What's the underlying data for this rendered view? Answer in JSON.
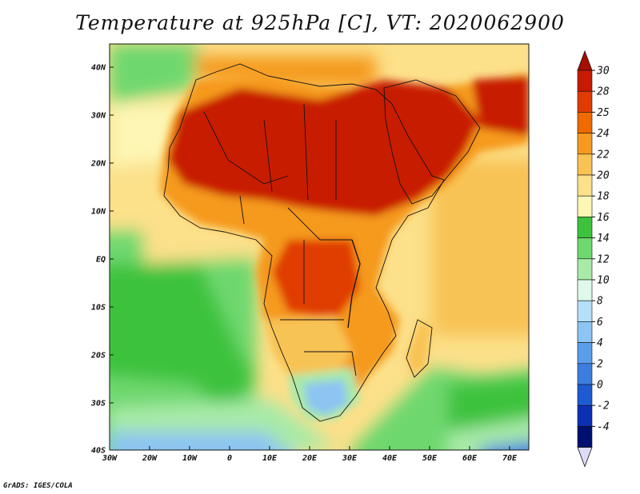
{
  "title": "Temperature at 925hPa [C], VT: 2020062900",
  "credit": "GrADS: IGES/COLA",
  "lat_labels": [
    "40N",
    "30N",
    "20N",
    "10N",
    "EQ",
    "10S",
    "20S",
    "30S",
    "40S"
  ],
  "lon_labels": [
    "30W",
    "20W",
    "10W",
    "0",
    "10E",
    "20E",
    "30E",
    "40E",
    "50E",
    "60E",
    "70E"
  ],
  "colorbar": {
    "levels": [
      "30",
      "28",
      "25",
      "24",
      "22",
      "20",
      "18",
      "16",
      "14",
      "12",
      "10",
      "8",
      "6",
      "4",
      "2",
      "0",
      "-2",
      "-4"
    ],
    "colors": [
      "#c81a00",
      "#e03c00",
      "#f06a00",
      "#f59a1e",
      "#f8c354",
      "#fce08a",
      "#fdf6b4",
      "#3cc23c",
      "#6ed86e",
      "#a8eaa8",
      "#dff9ea",
      "#b4e0f8",
      "#8cc4f2",
      "#5a9eea",
      "#3c7ee0",
      "#1e5ad2",
      "#0c30b4",
      "#001070"
    ],
    "top_cap_color": "#a50f00",
    "bottom_cap_color": "#dcdcf8"
  }
}
